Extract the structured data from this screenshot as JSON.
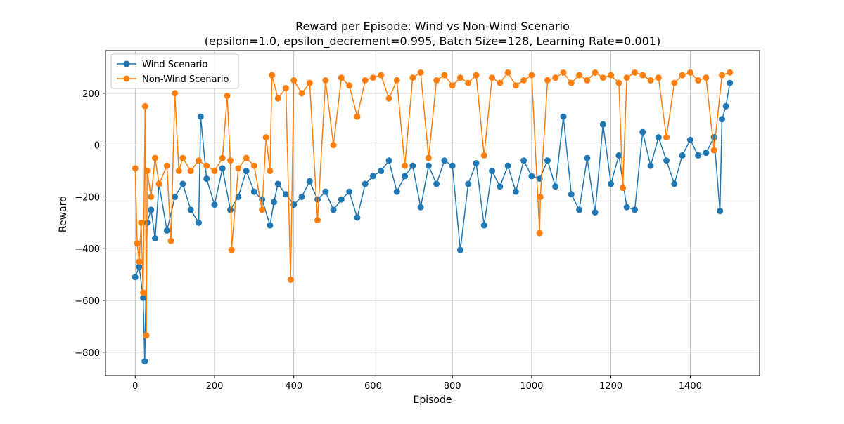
{
  "chart_data": {
    "type": "line",
    "title": "Reward per Episode: Wind vs Non-Wind Scenario",
    "subtitle": "(epsilon=1.0, epsilon_decrement=0.995, Batch Size=128, Learning Rate=0.001)",
    "xlabel": "Episode",
    "ylabel": "Reward",
    "xlim": [
      -75,
      1575
    ],
    "ylim": [
      -890,
      365
    ],
    "xticks": [
      0,
      200,
      400,
      600,
      800,
      1000,
      1200,
      1400
    ],
    "yticks": [
      -800,
      -600,
      -400,
      -200,
      0,
      200
    ],
    "grid": true,
    "legend_position": "top-left",
    "marker": "circle",
    "series": [
      {
        "name": "Wind Scenario",
        "color": "#1f77b4",
        "x": [
          0,
          10,
          20,
          24,
          30,
          40,
          50,
          60,
          80,
          100,
          120,
          140,
          160,
          165,
          180,
          200,
          220,
          240,
          260,
          280,
          300,
          320,
          340,
          350,
          360,
          380,
          400,
          420,
          440,
          460,
          480,
          500,
          520,
          540,
          560,
          580,
          600,
          620,
          640,
          660,
          680,
          700,
          720,
          740,
          760,
          780,
          800,
          820,
          840,
          860,
          880,
          900,
          920,
          940,
          960,
          980,
          1000,
          1020,
          1040,
          1060,
          1080,
          1100,
          1120,
          1140,
          1160,
          1180,
          1200,
          1220,
          1240,
          1260,
          1280,
          1300,
          1320,
          1340,
          1360,
          1380,
          1400,
          1420,
          1440,
          1460,
          1475,
          1480,
          1490,
          1500
        ],
        "values": [
          -510,
          -470,
          -590,
          -835,
          -300,
          -250,
          -360,
          -150,
          -330,
          -200,
          -150,
          -250,
          -300,
          110,
          -130,
          -230,
          -90,
          -250,
          -200,
          -100,
          -180,
          -210,
          -310,
          -220,
          -150,
          -190,
          -230,
          -200,
          -140,
          -210,
          -180,
          -250,
          -210,
          -180,
          -280,
          -150,
          -120,
          -100,
          -60,
          -180,
          -120,
          -80,
          -240,
          -80,
          -150,
          -60,
          -80,
          -405,
          -150,
          -70,
          -310,
          -100,
          -160,
          -80,
          -180,
          -60,
          -120,
          -130,
          -60,
          -160,
          110,
          -190,
          -250,
          -50,
          -260,
          80,
          -150,
          -40,
          -240,
          -250,
          50,
          -80,
          30,
          -60,
          -150,
          -40,
          20,
          -40,
          -30,
          30,
          -255,
          100,
          150,
          240
        ]
      },
      {
        "name": "Non-Wind Scenario",
        "color": "#ff7f0e",
        "x": [
          0,
          5,
          10,
          15,
          20,
          25,
          28,
          30,
          40,
          50,
          60,
          80,
          90,
          100,
          110,
          120,
          140,
          160,
          180,
          200,
          220,
          232,
          240,
          243,
          260,
          280,
          300,
          320,
          330,
          340,
          345,
          360,
          380,
          392,
          400,
          420,
          440,
          460,
          480,
          500,
          520,
          540,
          560,
          580,
          600,
          620,
          640,
          660,
          680,
          700,
          720,
          740,
          760,
          780,
          800,
          820,
          840,
          860,
          880,
          900,
          920,
          940,
          960,
          980,
          1000,
          1020,
          1022,
          1040,
          1060,
          1080,
          1100,
          1120,
          1140,
          1160,
          1180,
          1200,
          1220,
          1230,
          1240,
          1260,
          1280,
          1300,
          1320,
          1340,
          1360,
          1380,
          1400,
          1420,
          1440,
          1460,
          1480,
          1500
        ],
        "values": [
          -90,
          -380,
          -450,
          -300,
          -570,
          150,
          -735,
          -100,
          -200,
          -50,
          -150,
          -80,
          -370,
          200,
          -100,
          -50,
          -100,
          -60,
          -80,
          -100,
          -50,
          190,
          -60,
          -405,
          -90,
          -50,
          -80,
          -250,
          30,
          -100,
          270,
          180,
          220,
          -520,
          250,
          200,
          240,
          -290,
          250,
          0,
          260,
          230,
          110,
          250,
          260,
          270,
          180,
          250,
          -80,
          260,
          280,
          -50,
          250,
          270,
          230,
          260,
          240,
          270,
          -40,
          260,
          240,
          280,
          230,
          250,
          270,
          -340,
          -200,
          250,
          260,
          280,
          240,
          270,
          250,
          280,
          260,
          270,
          240,
          -165,
          260,
          280,
          270,
          250,
          260,
          30,
          240,
          270,
          280,
          250,
          260,
          -20,
          270,
          280
        ]
      }
    ]
  }
}
